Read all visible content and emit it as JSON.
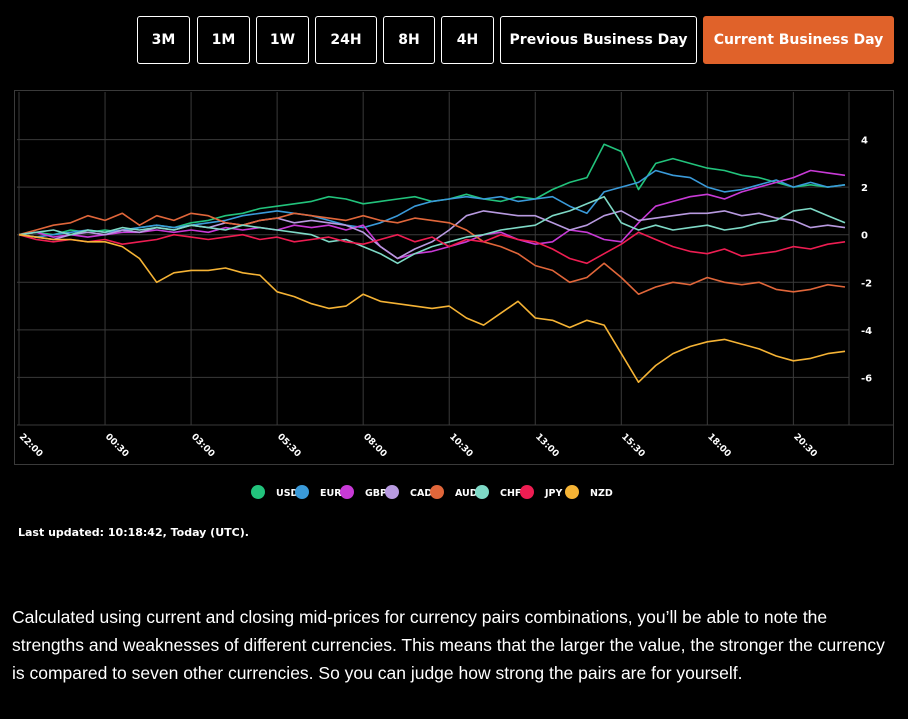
{
  "buttons": [
    "3M",
    "1M",
    "1W",
    "24H",
    "8H",
    "4H",
    "Previous Business Day",
    "Current Business Day"
  ],
  "active_button": 7,
  "chart_data": {
    "type": "line",
    "x": [
      "22:00",
      null,
      null,
      null,
      null,
      "00:30",
      null,
      null,
      null,
      null,
      "03:00",
      null,
      null,
      null,
      null,
      "05:30",
      null,
      null,
      null,
      null,
      "08:00",
      null,
      null,
      null,
      null,
      "10:30",
      null,
      null,
      null,
      null,
      "13:00",
      null,
      null,
      null,
      null,
      "15:30",
      null,
      null,
      null,
      null,
      "18:00",
      null,
      null,
      null,
      null,
      "20:30",
      null,
      null,
      null
    ],
    "ylim": [
      -8,
      6
    ],
    "yticks": [
      4,
      2,
      0,
      -2,
      -4,
      -6
    ],
    "grid": true,
    "series": [
      {
        "name": "USD",
        "color": "#22c37c",
        "values": [
          0,
          0.1,
          0,
          0.2,
          0.1,
          0.2,
          0.1,
          0.3,
          0.4,
          0.3,
          0.5,
          0.6,
          0.8,
          0.9,
          1.1,
          1.2,
          1.3,
          1.4,
          1.6,
          1.5,
          1.3,
          1.4,
          1.5,
          1.6,
          1.4,
          1.5,
          1.7,
          1.5,
          1.4,
          1.6,
          1.5,
          1.9,
          2.2,
          2.4,
          3.8,
          3.5,
          1.9,
          3.0,
          3.2,
          3.0,
          2.8,
          2.7,
          2.5,
          2.4,
          2.2,
          2.0,
          2.1,
          2.0,
          2.1
        ]
      },
      {
        "name": "EUR",
        "color": "#3a9ad9",
        "values": [
          0,
          -0.1,
          0,
          0.1,
          0.2,
          0.1,
          0.2,
          0.3,
          0.4,
          0.3,
          0.4,
          0.5,
          0.6,
          0.8,
          0.9,
          1.0,
          0.9,
          0.8,
          0.6,
          0.4,
          0.3,
          0.5,
          0.8,
          1.2,
          1.4,
          1.5,
          1.6,
          1.5,
          1.6,
          1.4,
          1.5,
          1.6,
          1.2,
          0.9,
          1.8,
          2.0,
          2.2,
          2.7,
          2.5,
          2.4,
          2.0,
          1.8,
          1.9,
          2.1,
          2.3,
          2.0,
          2.2,
          2.0,
          2.1
        ]
      },
      {
        "name": "GBP",
        "color": "#c83ad6",
        "values": [
          0,
          0.1,
          -0.1,
          0,
          -0.1,
          0,
          0.1,
          0.1,
          0.2,
          0.1,
          0.2,
          0.1,
          0.3,
          0.2,
          0.3,
          0.2,
          0.4,
          0.3,
          0.4,
          0.2,
          0.4,
          -0.5,
          -1.0,
          -0.8,
          -0.7,
          -0.5,
          -0.3,
          0.0,
          0.1,
          -0.2,
          -0.4,
          -0.3,
          0.2,
          0.1,
          -0.2,
          -0.3,
          0.5,
          1.2,
          1.4,
          1.6,
          1.7,
          1.5,
          1.8,
          2.0,
          2.2,
          2.4,
          2.7,
          2.6,
          2.5
        ]
      },
      {
        "name": "CAD",
        "color": "#b89ae0",
        "values": [
          0,
          -0.1,
          -0.2,
          0,
          0.1,
          0,
          0.2,
          0.1,
          0.3,
          0.2,
          0.4,
          0.3,
          0.5,
          0.4,
          0.6,
          0.7,
          0.5,
          0.6,
          0.5,
          0.4,
          0.1,
          -0.5,
          -1.0,
          -0.6,
          -0.3,
          0.2,
          0.8,
          1.0,
          0.9,
          0.8,
          0.8,
          0.5,
          0.2,
          0.4,
          0.8,
          1.0,
          0.6,
          0.7,
          0.8,
          0.9,
          0.9,
          1.0,
          0.8,
          0.9,
          0.7,
          0.6,
          0.3,
          0.4,
          0.3
        ]
      },
      {
        "name": "AUD",
        "color": "#e0663a",
        "values": [
          0,
          0.2,
          0.4,
          0.5,
          0.8,
          0.6,
          0.9,
          0.4,
          0.8,
          0.6,
          0.9,
          0.8,
          0.5,
          0.4,
          0.6,
          0.7,
          0.9,
          0.8,
          0.7,
          0.6,
          0.8,
          0.6,
          0.5,
          0.7,
          0.6,
          0.5,
          0.2,
          -0.3,
          -0.5,
          -0.8,
          -1.3,
          -1.5,
          -2.0,
          -1.8,
          -1.2,
          -1.8,
          -2.5,
          -2.2,
          -2.0,
          -2.1,
          -1.8,
          -2.0,
          -2.1,
          -2.0,
          -2.3,
          -2.4,
          -2.3,
          -2.1,
          -2.2
        ]
      },
      {
        "name": "CHF",
        "color": "#7ed9c6",
        "values": [
          0,
          0.1,
          0.2,
          0,
          0.2,
          0.1,
          0.3,
          0.2,
          0.3,
          0.2,
          0.4,
          0.3,
          0.2,
          0.4,
          0.3,
          0.2,
          0.1,
          0.0,
          -0.3,
          -0.2,
          -0.5,
          -0.8,
          -1.2,
          -0.8,
          -0.5,
          -0.3,
          -0.1,
          0.0,
          0.2,
          0.3,
          0.4,
          0.8,
          1.0,
          1.3,
          1.6,
          0.5,
          0.2,
          0.4,
          0.2,
          0.3,
          0.4,
          0.2,
          0.3,
          0.5,
          0.6,
          1.0,
          1.1,
          0.8,
          0.5
        ]
      },
      {
        "name": "JPY",
        "color": "#ee1d52",
        "values": [
          0,
          -0.2,
          -0.3,
          -0.2,
          -0.3,
          -0.2,
          -0.4,
          -0.3,
          -0.2,
          0,
          -0.1,
          -0.2,
          -0.1,
          0,
          -0.2,
          -0.1,
          -0.3,
          -0.2,
          -0.1,
          -0.3,
          -0.4,
          -0.2,
          0.0,
          -0.3,
          -0.1,
          -0.5,
          -0.2,
          -0.3,
          0.0,
          -0.2,
          -0.3,
          -0.6,
          -1.0,
          -1.2,
          -0.8,
          -0.4,
          0.1,
          -0.2,
          -0.5,
          -0.7,
          -0.8,
          -0.6,
          -0.9,
          -0.8,
          -0.7,
          -0.5,
          -0.6,
          -0.4,
          -0.3
        ]
      },
      {
        "name": "NZD",
        "color": "#f5b335",
        "values": [
          0,
          -0.1,
          -0.2,
          -0.2,
          -0.3,
          -0.3,
          -0.5,
          -1.0,
          -2.0,
          -1.6,
          -1.5,
          -1.5,
          -1.4,
          -1.6,
          -1.7,
          -2.4,
          -2.6,
          -2.9,
          -3.1,
          -3.0,
          -2.5,
          -2.8,
          -2.9,
          -3.0,
          -3.1,
          -3.0,
          -3.5,
          -3.8,
          -3.3,
          -2.8,
          -3.5,
          -3.6,
          -3.9,
          -3.6,
          -3.8,
          -5.0,
          -6.2,
          -5.5,
          -5.0,
          -4.7,
          -4.5,
          -4.4,
          -4.6,
          -4.8,
          -5.1,
          -5.3,
          -5.2,
          -5.0,
          -4.9
        ]
      }
    ]
  },
  "last_updated": "Last updated: 10:18:42, Today (UTC).",
  "description": "Calculated using current and closing mid-prices for currency pairs combinations, you’ll be able to note the strengths and weaknesses of different currencies. This means that the larger the value, the stronger the currency is compared to seven other currencies. So you can judge how strong the pairs are for yourself."
}
